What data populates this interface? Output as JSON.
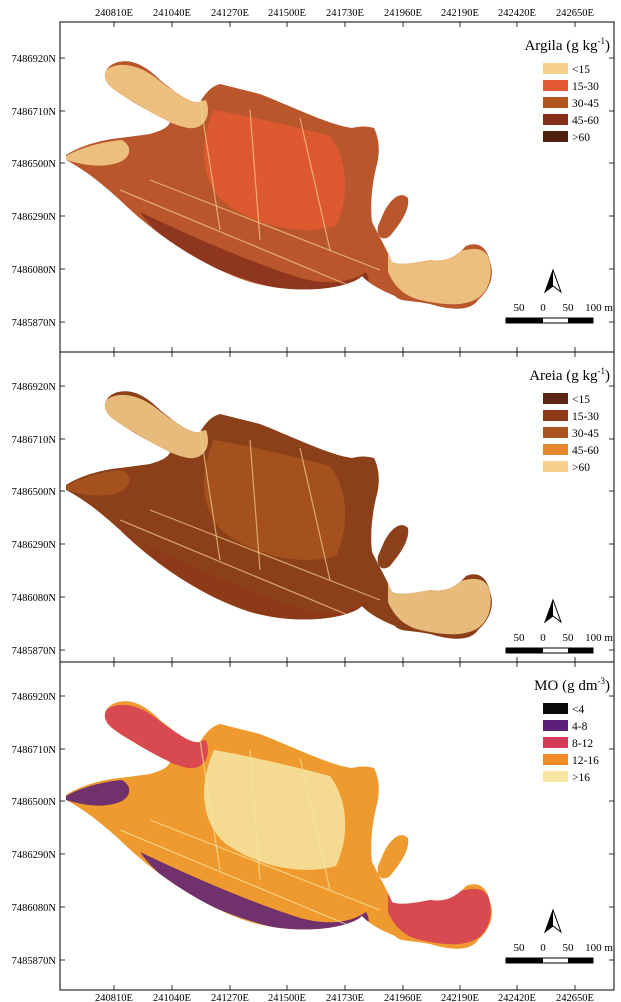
{
  "x_ticks": [
    "240810E",
    "241040E",
    "241270E",
    "241500E",
    "241730E",
    "241960E",
    "242190E",
    "242420E",
    "242650E"
  ],
  "y_ticks": [
    "7486920N",
    "7486710N",
    "7486500N",
    "7486290N",
    "7486080N",
    "7485870N"
  ],
  "panels": [
    {
      "legend_title": "Argila (g kg",
      "legend_sup": "-1",
      "legend_close": ")",
      "classes": [
        {
          "label": "<15",
          "color": "#f6d18d"
        },
        {
          "label": "15-30",
          "color": "#e35a32"
        },
        {
          "label": "30-45",
          "color": "#b4541f"
        },
        {
          "label": "45-60",
          "color": "#86301c"
        },
        {
          "label": ">60",
          "color": "#4f200f"
        }
      ],
      "base_color": "#b9562c",
      "patches": [
        {
          "class": 0,
          "shape": "north-lobe"
        },
        {
          "class": 0,
          "shape": "east-lobe"
        },
        {
          "class": 0,
          "shape": "west-tip"
        },
        {
          "class": 1,
          "shape": "center"
        },
        {
          "class": 3,
          "shape": "south-band"
        }
      ]
    },
    {
      "legend_title": "Areia (g kg",
      "legend_sup": "-1",
      "legend_close": ")",
      "classes": [
        {
          "label": "<15",
          "color": "#5a2513"
        },
        {
          "label": "15-30",
          "color": "#8e3a1a"
        },
        {
          "label": "30-45",
          "color": "#a85520"
        },
        {
          "label": "45-60",
          "color": "#e5882d"
        },
        {
          "label": ">60",
          "color": "#f6d18d"
        }
      ],
      "base_color": "#8c4019",
      "patches": [
        {
          "class": 4,
          "shape": "north-lobe"
        },
        {
          "class": 4,
          "shape": "east-lobe"
        },
        {
          "class": 2,
          "shape": "west-tip"
        },
        {
          "class": 2,
          "shape": "center"
        },
        {
          "class": 1,
          "shape": "south-band"
        }
      ]
    },
    {
      "legend_title": "MO (g dm",
      "legend_sup": "-3",
      "legend_close": ")",
      "classes": [
        {
          "label": "<4",
          "color": "#0a0a0a"
        },
        {
          "label": "4-8",
          "color": "#5b1f78"
        },
        {
          "label": "8-12",
          "color": "#d43b58"
        },
        {
          "label": "12-16",
          "color": "#ef8a24"
        },
        {
          "label": ">16",
          "color": "#f6e6a2"
        }
      ],
      "base_color": "#ef9a2e",
      "patches": [
        {
          "class": 2,
          "shape": "north-lobe"
        },
        {
          "class": 1,
          "shape": "west-tip"
        },
        {
          "class": 1,
          "shape": "south-band"
        },
        {
          "class": 2,
          "shape": "east-lobe"
        },
        {
          "class": 4,
          "shape": "center"
        }
      ]
    }
  ],
  "scale_bar": {
    "labels": [
      "50",
      "0",
      "50",
      "100 m"
    ]
  },
  "north_arrow": {
    "icon": "north-arrow-icon"
  }
}
